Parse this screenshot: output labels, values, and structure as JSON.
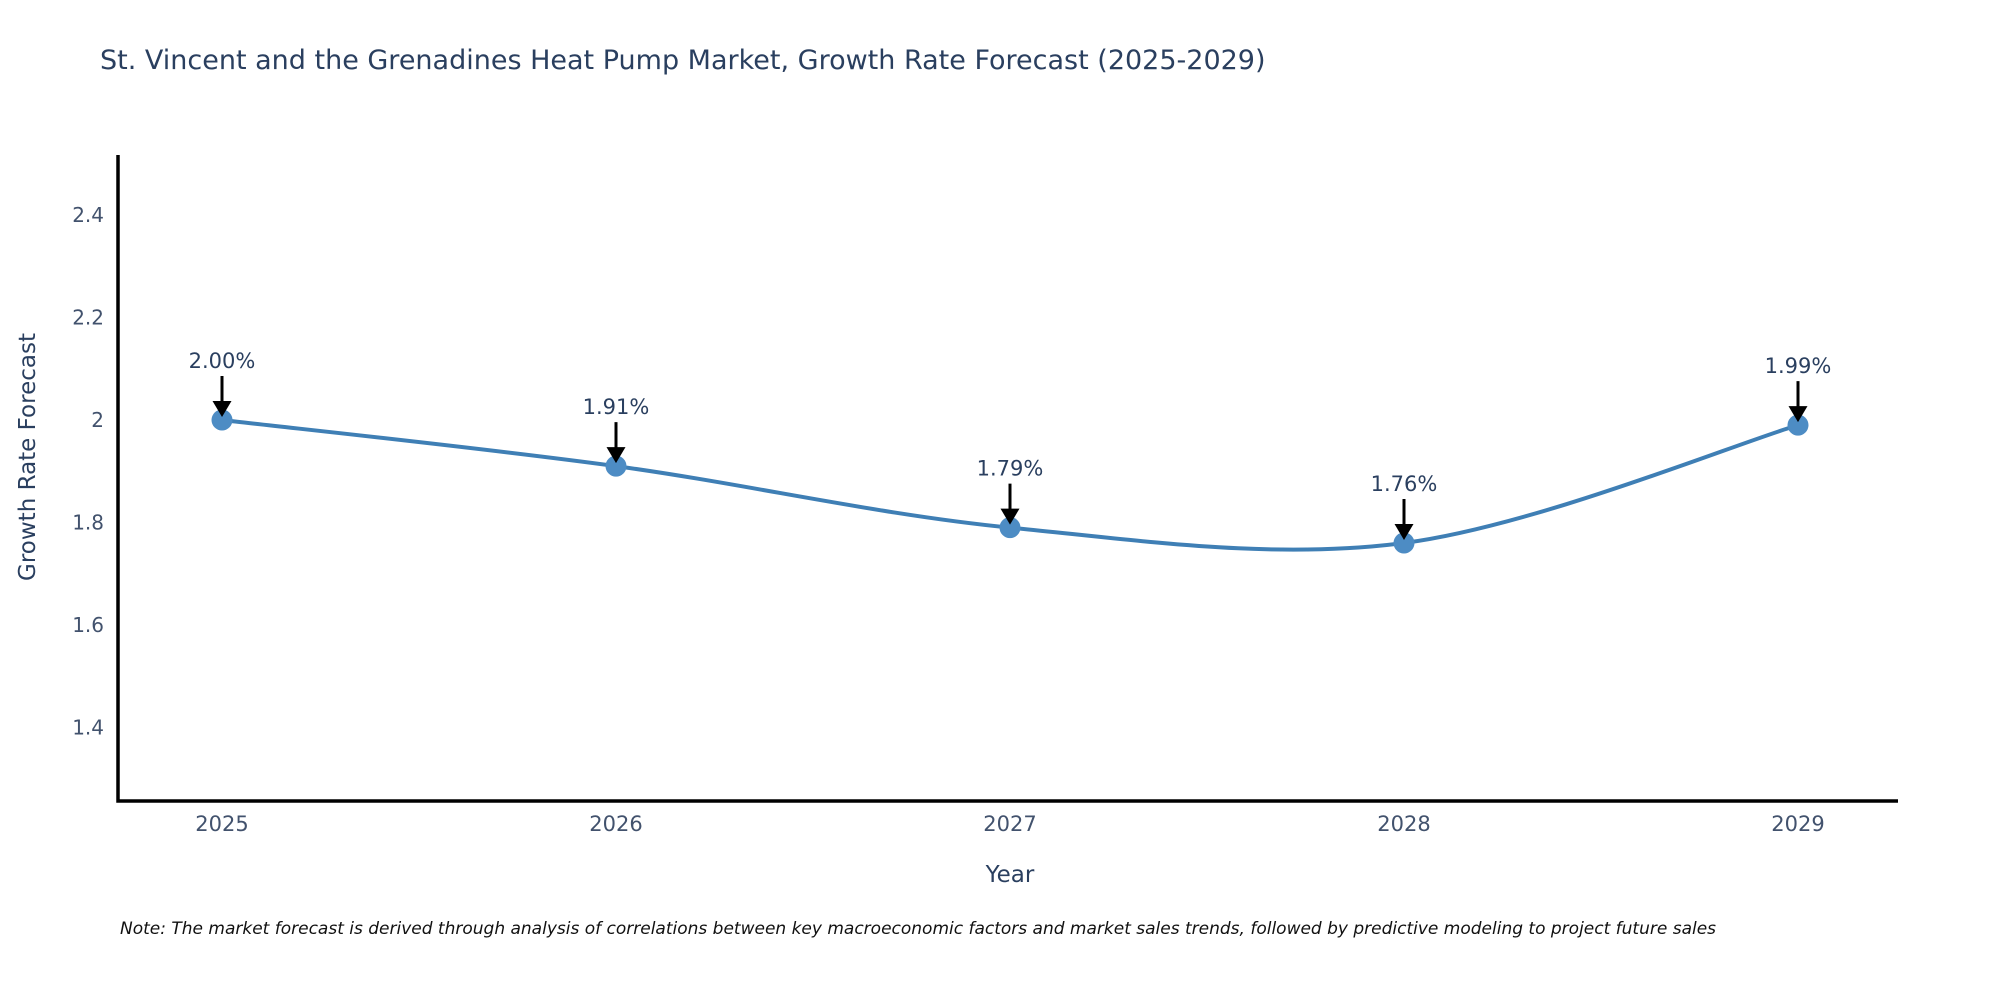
{
  "page": {
    "title": "St. Vincent and the Grenadines Heat Pump Market, Growth Rate Forecast (2025-2029)",
    "note": "Note: The market forecast is derived through analysis of correlations between key macroeconomic factors and market sales trends, followed by predictive modeling to project future sales"
  },
  "chart_data": {
    "type": "line",
    "title": "St. Vincent and the Grenadines Heat Pump Market, Growth Rate Forecast (2025-2029)",
    "xlabel": "Year",
    "ylabel": "Growth Rate Forecast",
    "categories": [
      "2025",
      "2026",
      "2027",
      "2028",
      "2029"
    ],
    "series": [
      {
        "name": "Growth Rate Forecast",
        "values": [
          2.0,
          1.91,
          1.79,
          1.76,
          1.99
        ],
        "point_labels": [
          "2.00%",
          "1.91%",
          "1.79%",
          "1.76%",
          "1.99%"
        ]
      }
    ],
    "yticks": [
      {
        "value": 2.4,
        "label": "2.4"
      },
      {
        "value": 2.2,
        "label": "2.2"
      },
      {
        "value": 2.0,
        "label": "2"
      },
      {
        "value": 1.8,
        "label": "1.8"
      },
      {
        "value": 1.6,
        "label": "1.6"
      },
      {
        "value": 1.4,
        "label": "1.4"
      }
    ],
    "ylim": [
      1.26,
      2.52
    ],
    "line_shape": "spline",
    "grid": false,
    "legend_position": "none",
    "annotations": "each point labeled with percent value and downward black arrow",
    "colors": {
      "line": "#3f7fb5",
      "marker": "#4d8cc4",
      "axis": "#000000",
      "title_text": "#2a3f5f",
      "tick_text": "#42526d",
      "annotation_text": "#2a3f5f",
      "arrow": "#000000",
      "background": "#ffffff"
    }
  }
}
